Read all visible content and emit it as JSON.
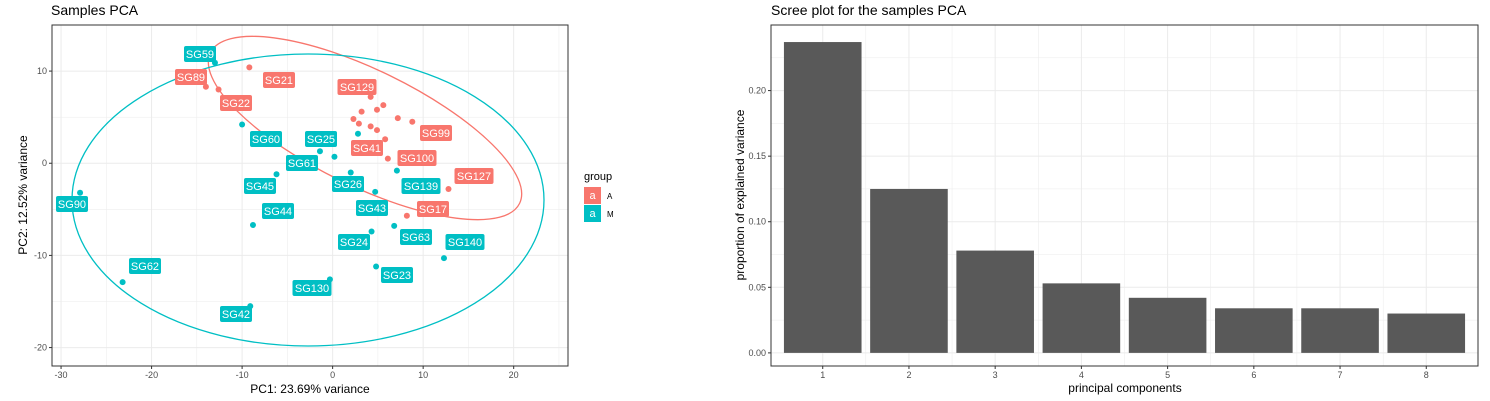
{
  "chart_data": [
    {
      "type": "scatter",
      "title": "Samples PCA",
      "xlabel": "PC1: 23.69% variance",
      "ylabel": "PC2: 12.52% variance",
      "xlim": [
        -31,
        26
      ],
      "ylim": [
        -22,
        15
      ],
      "xticks": [
        -30,
        -20,
        -10,
        0,
        10,
        20
      ],
      "yticks": [
        -20,
        -10,
        0,
        10
      ],
      "grid": true,
      "legend": {
        "title": "group",
        "position": "right",
        "entries": [
          {
            "key": "A",
            "symbol": "a",
            "color": "#F8766D"
          },
          {
            "key": "M",
            "symbol": "a",
            "color": "#00BFC4"
          }
        ]
      },
      "series": [
        {
          "name": "A",
          "color": "#F8766D",
          "points": [
            {
              "x": -9.2,
              "y": 10.4
            },
            {
              "x": -14,
              "y": 8.3
            },
            {
              "x": -12.6,
              "y": 8
            },
            {
              "x": 4.2,
              "y": 7.2
            },
            {
              "x": 5.6,
              "y": 6.3
            },
            {
              "x": 3.2,
              "y": 5.6
            },
            {
              "x": 4.9,
              "y": 5.8
            },
            {
              "x": 7.2,
              "y": 4.9
            },
            {
              "x": 8.8,
              "y": 4.5
            },
            {
              "x": 2.3,
              "y": 4.8
            },
            {
              "x": 2.9,
              "y": 4.3
            },
            {
              "x": 4.2,
              "y": 4
            },
            {
              "x": 4.9,
              "y": 3.6
            },
            {
              "x": 5.8,
              "y": 2.6
            },
            {
              "x": 6.1,
              "y": 0.5
            },
            {
              "x": 12.8,
              "y": -2.8
            },
            {
              "x": 8.2,
              "y": -5.7
            }
          ],
          "labels": [
            {
              "text": "SG21"
            },
            {
              "text": "SG89"
            },
            {
              "text": "SG22"
            },
            {
              "text": "SG129"
            },
            {
              "text": "SG99"
            },
            {
              "text": "SG41"
            },
            {
              "text": "SG100"
            },
            {
              "text": "SG127"
            },
            {
              "text": "SG17"
            }
          ]
        },
        {
          "name": "M",
          "color": "#00BFC4",
          "points": [
            {
              "x": -13,
              "y": 10.9
            },
            {
              "x": -10,
              "y": 4.2
            },
            {
              "x": 2.8,
              "y": 3.2
            },
            {
              "x": -1.4,
              "y": 1.3
            },
            {
              "x": 0.2,
              "y": 0.7
            },
            {
              "x": -6.2,
              "y": -1.2
            },
            {
              "x": 2,
              "y": -1
            },
            {
              "x": 7.1,
              "y": -0.8
            },
            {
              "x": 4.7,
              "y": -3.1
            },
            {
              "x": -27.9,
              "y": -3.2
            },
            {
              "x": -8.8,
              "y": -6.7
            },
            {
              "x": 6.8,
              "y": -6.8
            },
            {
              "x": 4.3,
              "y": -7.4
            },
            {
              "x": 12.3,
              "y": -10.3
            },
            {
              "x": 4.8,
              "y": -11.2
            },
            {
              "x": -0.3,
              "y": -12.6
            },
            {
              "x": -23.2,
              "y": -12.9
            },
            {
              "x": -9.1,
              "y": -15.5
            }
          ],
          "labels": [
            {
              "text": "SG59"
            },
            {
              "text": "SG60"
            },
            {
              "text": "SG25"
            },
            {
              "text": "SG61"
            },
            {
              "text": "SG45"
            },
            {
              "text": "SG26"
            },
            {
              "text": "SG139"
            },
            {
              "text": "SG43"
            },
            {
              "text": "SG90"
            },
            {
              "text": "SG44"
            },
            {
              "text": "SG24"
            },
            {
              "text": "SG63"
            },
            {
              "text": "SG140"
            },
            {
              "text": "SG23"
            },
            {
              "text": "SG130"
            },
            {
              "text": "SG62"
            },
            {
              "text": "SG42"
            }
          ]
        }
      ]
    },
    {
      "type": "bar",
      "title": "Scree plot for the samples PCA",
      "xlabel": "principal components",
      "ylabel": "proportion of explained variance",
      "categories": [
        "1",
        "2",
        "3",
        "4",
        "5",
        "6",
        "7",
        "8"
      ],
      "values": [
        0.237,
        0.125,
        0.078,
        0.053,
        0.042,
        0.034,
        0.034,
        0.03
      ],
      "ylim": [
        -0.01,
        0.25
      ],
      "yticks": [
        0.0,
        0.05,
        0.1,
        0.15,
        0.2
      ],
      "ytick_labels": [
        "0.00",
        "0.05",
        "0.10",
        "0.15",
        "0.20"
      ],
      "bar_color": "#595959",
      "grid": true
    }
  ]
}
